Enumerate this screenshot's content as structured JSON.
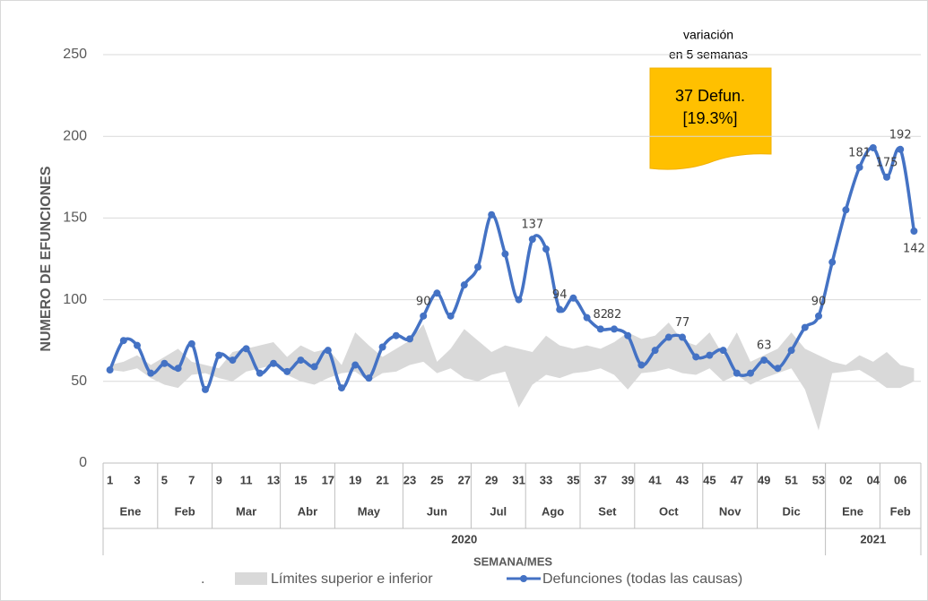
{
  "chart_data": {
    "type": "line",
    "ylabel": "NUMERO DE EFUNCIONES",
    "xlabel": "SEMANA/MES",
    "ylim": [
      0,
      250
    ],
    "yticks": [
      0,
      50,
      100,
      150,
      200,
      250
    ],
    "grid": true,
    "categories": [
      "1",
      null,
      "3",
      null,
      "5",
      null,
      "7",
      null,
      "9",
      null,
      "11",
      null,
      "13",
      null,
      "15",
      null,
      "17",
      null,
      "19",
      null,
      "21",
      null,
      "23",
      null,
      "25",
      null,
      "27",
      null,
      "29",
      null,
      "31",
      null,
      "33",
      null,
      "35",
      null,
      "37",
      null,
      "39",
      null,
      "41",
      null,
      "43",
      null,
      "45",
      null,
      "47",
      null,
      "49",
      null,
      "51",
      null,
      "53",
      null,
      "02",
      null,
      "04",
      null,
      "06",
      null
    ],
    "month_groups": [
      {
        "label": "Ene",
        "weeks": 4
      },
      {
        "label": "Feb",
        "weeks": 4
      },
      {
        "label": "Mar",
        "weeks": 5
      },
      {
        "label": "Abr",
        "weeks": 4
      },
      {
        "label": "May",
        "weeks": 5
      },
      {
        "label": "Jun",
        "weeks": 5
      },
      {
        "label": "Jul",
        "weeks": 4
      },
      {
        "label": "Ago",
        "weeks": 4
      },
      {
        "label": "Set",
        "weeks": 4
      },
      {
        "label": "Oct",
        "weeks": 5
      },
      {
        "label": "Nov",
        "weeks": 4
      },
      {
        "label": "Dic",
        "weeks": 5
      },
      {
        "label": "Ene",
        "weeks": 4
      },
      {
        "label": "Feb",
        "weeks": 3
      }
    ],
    "year_groups": [
      {
        "label": "2020",
        "weeks": 53
      },
      {
        "label": "2021",
        "weeks": 7
      }
    ],
    "band": {
      "name": "Límites superior e inferior",
      "color": "#d9d9d9",
      "upper": [
        60,
        62,
        66,
        60,
        65,
        70,
        62,
        60,
        58,
        68,
        70,
        72,
        74,
        65,
        72,
        68,
        70,
        60,
        80,
        72,
        65,
        70,
        75,
        85,
        62,
        70,
        82,
        75,
        68,
        72,
        70,
        68,
        78,
        72,
        70,
        72,
        70,
        74,
        80,
        76,
        78,
        86,
        75,
        72,
        80,
        66,
        80,
        62,
        66,
        70,
        80,
        70,
        66,
        62,
        60,
        66,
        62,
        68,
        60,
        58
      ],
      "lower": [
        57,
        56,
        58,
        52,
        48,
        46,
        54,
        55,
        52,
        50,
        56,
        58,
        60,
        54,
        50,
        48,
        52,
        55,
        56,
        50,
        55,
        56,
        60,
        62,
        55,
        58,
        52,
        50,
        54,
        56,
        34,
        48,
        54,
        52,
        55,
        56,
        58,
        54,
        45,
        55,
        56,
        58,
        55,
        54,
        58,
        50,
        54,
        48,
        52,
        55,
        58,
        45,
        20,
        55,
        56,
        57,
        52,
        46,
        46,
        50
      ]
    },
    "series": [
      {
        "name": "Defunciones (todas las causas)",
        "color": "#4472c4",
        "values": [
          57,
          75,
          72,
          55,
          61,
          58,
          73,
          45,
          66,
          63,
          70,
          55,
          61,
          56,
          63,
          59,
          69,
          46,
          60,
          52,
          71,
          78,
          76,
          90,
          104,
          90,
          109,
          120,
          152,
          128,
          100,
          137,
          131,
          94,
          101,
          89,
          82,
          82,
          78,
          60,
          69,
          77,
          77,
          65,
          66,
          69,
          55,
          55,
          63,
          58,
          69,
          83,
          90,
          123,
          155,
          181,
          193,
          175,
          192,
          142
        ],
        "value_labels": [
          null,
          null,
          null,
          null,
          null,
          null,
          null,
          null,
          null,
          null,
          null,
          null,
          null,
          null,
          null,
          null,
          null,
          null,
          null,
          null,
          null,
          null,
          null,
          "90",
          null,
          null,
          null,
          null,
          null,
          null,
          null,
          "137",
          null,
          "94",
          null,
          null,
          "82",
          "82",
          null,
          null,
          null,
          null,
          "77",
          null,
          null,
          null,
          null,
          null,
          "63",
          null,
          null,
          null,
          "90",
          null,
          null,
          "181",
          null,
          "175",
          "192",
          "142"
        ]
      }
    ],
    "legend_marker": ".",
    "annotation": {
      "title": [
        "variación",
        "en 5 semanas"
      ],
      "note": [
        "37 Defun.",
        "[19.3%]"
      ]
    }
  }
}
